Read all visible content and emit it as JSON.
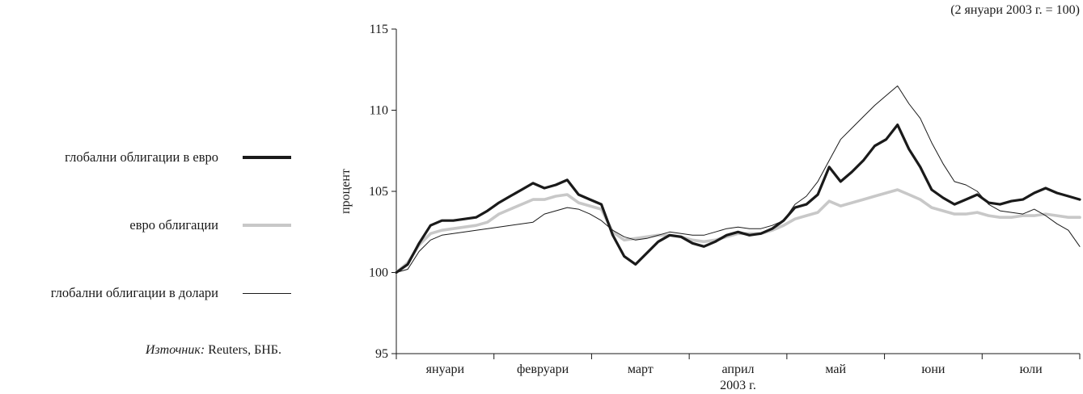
{
  "chart_data": {
    "type": "line",
    "scale_note": "(2 януари 2003 г. = 100)",
    "ylabel": "процент",
    "xlabel": "2003 г.",
    "ylim": [
      95,
      115
    ],
    "yticks": [
      95,
      100,
      105,
      110,
      115
    ],
    "grid": false,
    "legend_position": "left",
    "x": [
      "01-02",
      "01-06",
      "01-09",
      "01-13",
      "01-16",
      "01-20",
      "01-23",
      "01-27",
      "01-30",
      "02-03",
      "02-06",
      "02-10",
      "02-13",
      "02-17",
      "02-20",
      "02-24",
      "02-27",
      "03-03",
      "03-06",
      "03-10",
      "03-13",
      "03-17",
      "03-20",
      "03-24",
      "03-27",
      "03-31",
      "04-03",
      "04-07",
      "04-10",
      "04-14",
      "04-17",
      "04-21",
      "04-24",
      "04-28",
      "05-01",
      "05-05",
      "05-08",
      "05-12",
      "05-15",
      "05-19",
      "05-22",
      "05-26",
      "05-29",
      "06-02",
      "06-05",
      "06-09",
      "06-12",
      "06-16",
      "06-19",
      "06-23",
      "06-26",
      "06-30",
      "07-03",
      "07-07",
      "07-10",
      "07-14",
      "07-17",
      "07-21",
      "07-24",
      "07-28",
      "07-31"
    ],
    "month_labels": [
      "януари",
      "февруари",
      "март",
      "април",
      "май",
      "юни",
      "юли"
    ],
    "series": [
      {
        "name": "глобални облигации в евро",
        "color": "#1a1a1a",
        "values": [
          100.0,
          100.5,
          101.8,
          102.9,
          103.2,
          103.2,
          103.3,
          103.4,
          103.8,
          104.3,
          104.7,
          105.1,
          105.5,
          105.2,
          105.4,
          105.7,
          104.8,
          104.5,
          104.2,
          102.3,
          101.0,
          100.5,
          101.2,
          101.9,
          102.3,
          102.2,
          101.8,
          101.6,
          101.9,
          102.3,
          102.5,
          102.3,
          102.4,
          102.7,
          103.2,
          104.0,
          104.2,
          104.8,
          106.5,
          105.6,
          106.2,
          106.9,
          107.8,
          108.2,
          109.1,
          107.6,
          106.5,
          105.1,
          104.6,
          104.2,
          104.5,
          104.8,
          104.3,
          104.2,
          104.4,
          104.5,
          104.9,
          105.2,
          104.9,
          104.7,
          104.5
        ]
      },
      {
        "name": "евро облигации",
        "color": "#c8c8c8",
        "values": [
          100.0,
          100.6,
          101.7,
          102.4,
          102.6,
          102.7,
          102.8,
          102.9,
          103.1,
          103.6,
          103.9,
          104.2,
          104.5,
          104.5,
          104.7,
          104.8,
          104.3,
          104.1,
          103.9,
          102.5,
          102.0,
          102.1,
          102.2,
          102.3,
          102.3,
          102.2,
          102.0,
          101.9,
          102.0,
          102.2,
          102.4,
          102.4,
          102.4,
          102.6,
          102.9,
          103.3,
          103.5,
          103.7,
          104.4,
          104.1,
          104.3,
          104.5,
          104.7,
          104.9,
          105.1,
          104.8,
          104.5,
          104.0,
          103.8,
          103.6,
          103.6,
          103.7,
          103.5,
          103.4,
          103.4,
          103.5,
          103.5,
          103.6,
          103.5,
          103.4,
          103.4
        ]
      },
      {
        "name": "глобални облигации в долари",
        "color": "#1a1a1a",
        "values": [
          100.0,
          100.2,
          101.3,
          102.0,
          102.3,
          102.4,
          102.5,
          102.6,
          102.7,
          102.8,
          102.9,
          103.0,
          103.1,
          103.6,
          103.8,
          104.0,
          103.9,
          103.6,
          103.2,
          102.6,
          102.2,
          102.0,
          102.1,
          102.3,
          102.5,
          102.4,
          102.3,
          102.3,
          102.5,
          102.7,
          102.8,
          102.7,
          102.7,
          102.9,
          103.2,
          104.2,
          104.7,
          105.6,
          106.9,
          108.2,
          108.9,
          109.6,
          110.3,
          110.9,
          111.5,
          110.4,
          109.5,
          108.0,
          106.7,
          105.6,
          105.4,
          105.0,
          104.2,
          103.8,
          103.7,
          103.6,
          103.9,
          103.5,
          103.0,
          102.6,
          101.6
        ]
      }
    ],
    "source_label": "Източник:",
    "source_text": " Reuters, БНБ."
  }
}
